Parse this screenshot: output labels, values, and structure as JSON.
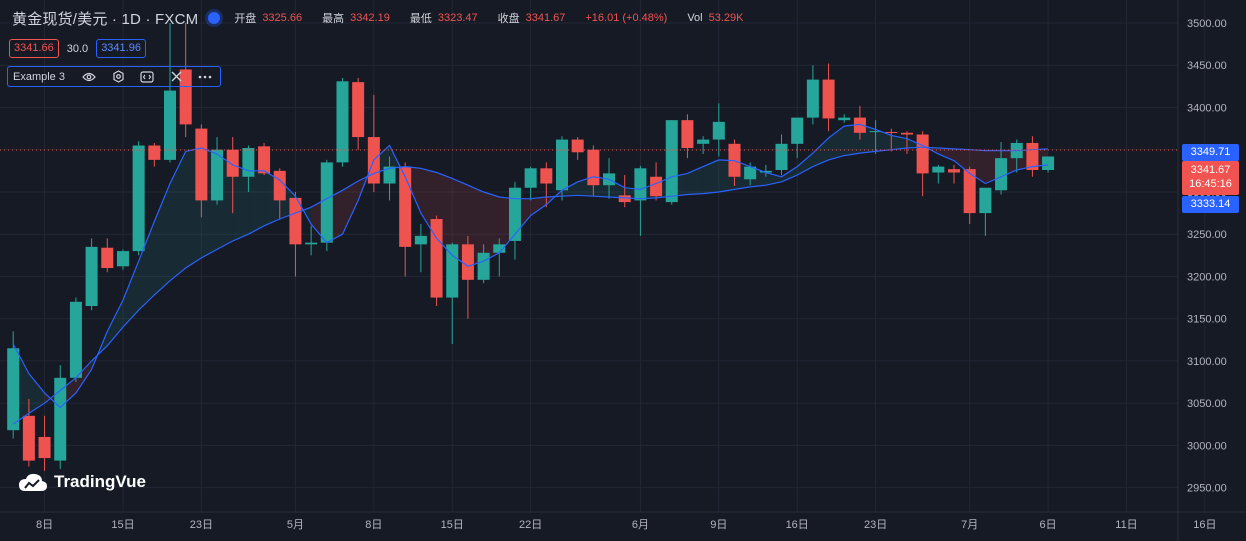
{
  "header": {
    "title": "黄金现货/美元 · 1D · FXCM",
    "fields": [
      {
        "label": "开盘",
        "value": "3325.66"
      },
      {
        "label": "最高",
        "value": "3342.19"
      },
      {
        "label": "最低",
        "value": "3323.47"
      },
      {
        "label": "收盘",
        "value": "3341.67"
      },
      {
        "label": "",
        "value": "+16.01 (+0.48%)"
      },
      {
        "label": "Vol",
        "value": "53.29K"
      }
    ],
    "bid": "3341.66",
    "spread": "30.0",
    "ask": "3341.96"
  },
  "indicator": {
    "name": "Example 3"
  },
  "logo": {
    "text": "TradingVue"
  },
  "price_tags": {
    "upper_line": "3349.71",
    "last_price": "3341.67",
    "countdown": "16:45:16",
    "lower_line": "3333.14"
  },
  "colors": {
    "up": "#26a69a",
    "down": "#ef5350",
    "ma": "#2962ff",
    "background": "#161a25",
    "grid": "#232734"
  },
  "chart_data": {
    "type": "candlestick",
    "ylim": [
      2925,
      3510
    ],
    "y_ticks": [
      "3500.00",
      "3450.00",
      "3400.00",
      "3350.00",
      "3300.00",
      "3250.00",
      "3200.00",
      "3150.00",
      "3100.00",
      "3050.00",
      "3000.00",
      "2950.00"
    ],
    "y_tick_values": [
      3500,
      3450,
      3400,
      3350,
      3300,
      3250,
      3200,
      3150,
      3100,
      3050,
      3000,
      2950
    ],
    "x_ticks": [
      {
        "label": "8日",
        "i": 2
      },
      {
        "label": "15日",
        "i": 7
      },
      {
        "label": "23日",
        "i": 12
      },
      {
        "label": "5月",
        "i": 18
      },
      {
        "label": "8日",
        "i": 23
      },
      {
        "label": "15日",
        "i": 28
      },
      {
        "label": "22日",
        "i": 33
      },
      {
        "label": "6月",
        "i": 40
      },
      {
        "label": "9日",
        "i": 45
      },
      {
        "label": "16日",
        "i": 50
      },
      {
        "label": "23日",
        "i": 55
      },
      {
        "label": "7月",
        "i": 61
      },
      {
        "label": "6日",
        "i": 66
      },
      {
        "label": "11日",
        "i": 71
      },
      {
        "label": "16日",
        "i": 76
      }
    ],
    "candles": [
      {
        "o": 3018,
        "h": 3135,
        "l": 3008,
        "c": 3115
      },
      {
        "o": 3035,
        "h": 3055,
        "l": 2975,
        "c": 2982
      },
      {
        "o": 3010,
        "h": 3035,
        "l": 2970,
        "c": 2985
      },
      {
        "o": 2982,
        "h": 3095,
        "l": 2972,
        "c": 3080
      },
      {
        "o": 3080,
        "h": 3175,
        "l": 3075,
        "c": 3170
      },
      {
        "o": 3165,
        "h": 3245,
        "l": 3160,
        "c": 3235
      },
      {
        "o": 3234,
        "h": 3245,
        "l": 3205,
        "c": 3210
      },
      {
        "o": 3212,
        "h": 3232,
        "l": 3208,
        "c": 3230
      },
      {
        "o": 3230,
        "h": 3360,
        "l": 3225,
        "c": 3355
      },
      {
        "o": 3355,
        "h": 3358,
        "l": 3330,
        "c": 3338
      },
      {
        "o": 3338,
        "h": 3500,
        "l": 3335,
        "c": 3420
      },
      {
        "o": 3445,
        "h": 3500,
        "l": 3365,
        "c": 3380
      },
      {
        "o": 3375,
        "h": 3380,
        "l": 3270,
        "c": 3290
      },
      {
        "o": 3290,
        "h": 3365,
        "l": 3285,
        "c": 3350
      },
      {
        "o": 3350,
        "h": 3365,
        "l": 3275,
        "c": 3318
      },
      {
        "o": 3318,
        "h": 3355,
        "l": 3300,
        "c": 3352
      },
      {
        "o": 3354,
        "h": 3358,
        "l": 3320,
        "c": 3322
      },
      {
        "o": 3325,
        "h": 3328,
        "l": 3268,
        "c": 3290
      },
      {
        "o": 3293,
        "h": 3300,
        "l": 3200,
        "c": 3238
      },
      {
        "o": 3238,
        "h": 3260,
        "l": 3225,
        "c": 3240
      },
      {
        "o": 3240,
        "h": 3338,
        "l": 3230,
        "c": 3335
      },
      {
        "o": 3335,
        "h": 3435,
        "l": 3330,
        "c": 3431
      },
      {
        "o": 3430,
        "h": 3435,
        "l": 3350,
        "c": 3365
      },
      {
        "o": 3365,
        "h": 3415,
        "l": 3300,
        "c": 3310
      },
      {
        "o": 3310,
        "h": 3342,
        "l": 3290,
        "c": 3330
      },
      {
        "o": 3330,
        "h": 3335,
        "l": 3200,
        "c": 3235
      },
      {
        "o": 3238,
        "h": 3262,
        "l": 3205,
        "c": 3248
      },
      {
        "o": 3268,
        "h": 3272,
        "l": 3165,
        "c": 3175
      },
      {
        "o": 3175,
        "h": 3240,
        "l": 3120,
        "c": 3238
      },
      {
        "o": 3238,
        "h": 3248,
        "l": 3150,
        "c": 3196
      },
      {
        "o": 3196,
        "h": 3238,
        "l": 3192,
        "c": 3228
      },
      {
        "o": 3228,
        "h": 3245,
        "l": 3200,
        "c": 3238
      },
      {
        "o": 3242,
        "h": 3312,
        "l": 3220,
        "c": 3305
      },
      {
        "o": 3305,
        "h": 3330,
        "l": 3290,
        "c": 3328
      },
      {
        "o": 3328,
        "h": 3335,
        "l": 3282,
        "c": 3310
      },
      {
        "o": 3302,
        "h": 3366,
        "l": 3290,
        "c": 3362
      },
      {
        "o": 3362,
        "h": 3365,
        "l": 3338,
        "c": 3347
      },
      {
        "o": 3350,
        "h": 3355,
        "l": 3295,
        "c": 3308
      },
      {
        "o": 3308,
        "h": 3340,
        "l": 3292,
        "c": 3322
      },
      {
        "o": 3296,
        "h": 3320,
        "l": 3282,
        "c": 3288
      },
      {
        "o": 3290,
        "h": 3331,
        "l": 3248,
        "c": 3328
      },
      {
        "o": 3318,
        "h": 3335,
        "l": 3290,
        "c": 3295
      },
      {
        "o": 3288,
        "h": 3385,
        "l": 3285,
        "c": 3385
      },
      {
        "o": 3385,
        "h": 3392,
        "l": 3340,
        "c": 3352
      },
      {
        "o": 3357,
        "h": 3366,
        "l": 3345,
        "c": 3362
      },
      {
        "o": 3362,
        "h": 3405,
        "l": 3342,
        "c": 3383
      },
      {
        "o": 3357,
        "h": 3362,
        "l": 3307,
        "c": 3318
      },
      {
        "o": 3315,
        "h": 3335,
        "l": 3308,
        "c": 3330
      },
      {
        "o": 3323,
        "h": 3332,
        "l": 3318,
        "c": 3325
      },
      {
        "o": 3326,
        "h": 3368,
        "l": 3320,
        "c": 3357
      },
      {
        "o": 3357,
        "h": 3388,
        "l": 3340,
        "c": 3388
      },
      {
        "o": 3388,
        "h": 3450,
        "l": 3380,
        "c": 3433
      },
      {
        "o": 3433,
        "h": 3452,
        "l": 3372,
        "c": 3387
      },
      {
        "o": 3385,
        "h": 3392,
        "l": 3382,
        "c": 3388
      },
      {
        "o": 3388,
        "h": 3402,
        "l": 3362,
        "c": 3370
      },
      {
        "o": 3372,
        "h": 3385,
        "l": 3345,
        "c": 3372
      },
      {
        "o": 3371,
        "h": 3375,
        "l": 3348,
        "c": 3370
      },
      {
        "o": 3370,
        "h": 3372,
        "l": 3345,
        "c": 3368
      },
      {
        "o": 3368,
        "h": 3372,
        "l": 3295,
        "c": 3322
      },
      {
        "o": 3323,
        "h": 3332,
        "l": 3310,
        "c": 3330
      },
      {
        "o": 3327,
        "h": 3332,
        "l": 3310,
        "c": 3323
      },
      {
        "o": 3327,
        "h": 3330,
        "l": 3262,
        "c": 3275
      },
      {
        "o": 3275,
        "h": 3300,
        "l": 3248,
        "c": 3305
      },
      {
        "o": 3302,
        "h": 3359,
        "l": 3297,
        "c": 3340
      },
      {
        "o": 3340,
        "h": 3362,
        "l": 3323,
        "c": 3358
      },
      {
        "o": 3358,
        "h": 3366,
        "l": 3318,
        "c": 3326
      },
      {
        "o": 3326,
        "h": 3342,
        "l": 3323,
        "c": 3342
      }
    ],
    "ma_fast": [
      3120,
      3085,
      3062,
      3045,
      3062,
      3090,
      3135,
      3172,
      3218,
      3265,
      3310,
      3348,
      3352,
      3345,
      3332,
      3325,
      3325,
      3314,
      3295,
      3262,
      3240,
      3250,
      3290,
      3338,
      3355,
      3318,
      3275,
      3245,
      3225,
      3212,
      3218,
      3228,
      3250,
      3272,
      3285,
      3302,
      3312,
      3318,
      3315,
      3305,
      3303,
      3310,
      3318,
      3322,
      3330,
      3338,
      3337,
      3330,
      3323,
      3318,
      3330,
      3346,
      3364,
      3378,
      3380,
      3374,
      3367,
      3363,
      3355,
      3345,
      3337,
      3322,
      3310,
      3318,
      3326,
      3330,
      3332
    ],
    "ma_slow": [
      3025,
      3038,
      3050,
      3065,
      3080,
      3100,
      3118,
      3140,
      3160,
      3178,
      3195,
      3210,
      3222,
      3232,
      3242,
      3250,
      3260,
      3268,
      3275,
      3282,
      3292,
      3302,
      3313,
      3322,
      3328,
      3330,
      3328,
      3323,
      3316,
      3308,
      3300,
      3294,
      3292,
      3292,
      3294,
      3295,
      3296,
      3295,
      3294,
      3293,
      3292,
      3293,
      3295,
      3297,
      3298,
      3300,
      3303,
      3306,
      3308,
      3312,
      3320,
      3330,
      3338,
      3343,
      3346,
      3348,
      3350,
      3352,
      3353,
      3352,
      3351,
      3350,
      3349,
      3349,
      3349,
      3350,
      3351
    ]
  }
}
